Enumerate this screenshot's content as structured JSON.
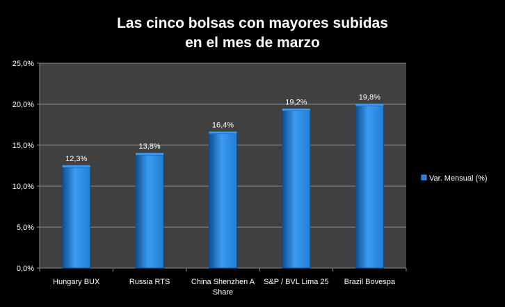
{
  "chart_data": {
    "type": "bar",
    "title_lines": [
      "Las cinco bolsas con mayores subidas",
      "en el mes de marzo"
    ],
    "categories": [
      [
        "Hungary BUX"
      ],
      [
        "Russia RTS"
      ],
      [
        "China Shenzhen A",
        "Share"
      ],
      [
        "S&P / BVL Lima 25"
      ],
      [
        "Brazil Bovespa"
      ]
    ],
    "series": [
      {
        "name": "Var. Mensual (%)",
        "values": [
          12.3,
          13.8,
          16.4,
          19.2,
          19.8
        ],
        "labels": [
          "12,3%",
          "13,8%",
          "16,4%",
          "19,2%",
          "19,8%"
        ]
      }
    ],
    "ylim": [
      0,
      25
    ],
    "yticks": [
      {
        "value": 0,
        "label": "0,0%"
      },
      {
        "value": 5,
        "label": "5,0%"
      },
      {
        "value": 10,
        "label": "10,0%"
      },
      {
        "value": 15,
        "label": "15,0%"
      },
      {
        "value": 20,
        "label": "20,0%"
      },
      {
        "value": 25,
        "label": "25,0%"
      }
    ],
    "grid": true,
    "legend_position": "right",
    "colors": {
      "background": "#000000",
      "plot_area": "#404040",
      "gridline": "#8c8c8c",
      "bar": "#1f7fd6",
      "bar_light": "#3c9bf0",
      "bar_dark": "#0d4f93",
      "text": "#ffffff"
    }
  }
}
